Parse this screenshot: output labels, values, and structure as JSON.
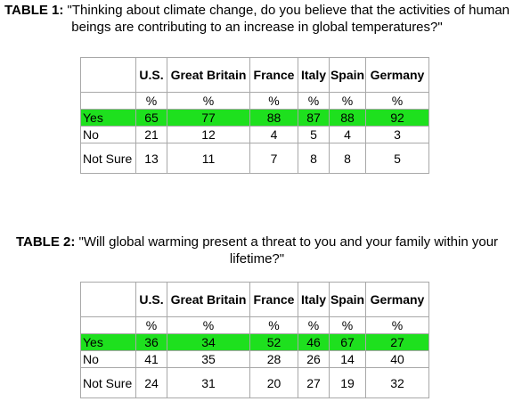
{
  "table1": {
    "caption_label": "TABLE 1:",
    "caption_text": " \"Thinking about climate change, do you believe that the activities of human beings are contributing to an increase in global temperatures?\"",
    "headers": [
      "U.S.",
      "Great Britain",
      "France",
      "Italy",
      "Spain",
      "Germany"
    ],
    "unit_row": [
      "%",
      "%",
      "%",
      "%",
      "%",
      "%"
    ],
    "rows": [
      {
        "label": "Yes",
        "values": [
          "65",
          "77",
          "88",
          "87",
          "88",
          "92"
        ]
      },
      {
        "label": "No",
        "values": [
          "21",
          "12",
          "4",
          "5",
          "4",
          "3"
        ]
      },
      {
        "label": "Not Sure",
        "values": [
          "13",
          "11",
          "7",
          "8",
          "8",
          "5"
        ]
      }
    ]
  },
  "table2": {
    "caption_label": "TABLE 2:",
    "caption_text": " \"Will global warming present a threat to you and your family within your lifetime?\"",
    "headers": [
      "U.S.",
      "Great Britain",
      "France",
      "Italy",
      "Spain",
      "Germany"
    ],
    "unit_row": [
      "%",
      "%",
      "%",
      "%",
      "%",
      "%"
    ],
    "rows": [
      {
        "label": "Yes",
        "values": [
          "36",
          "34",
          "52",
          "46",
          "67",
          "27"
        ]
      },
      {
        "label": "No",
        "values": [
          "41",
          "35",
          "28",
          "26",
          "14",
          "40"
        ]
      },
      {
        "label": "Not Sure",
        "values": [
          "24",
          "31",
          "20",
          "27",
          "19",
          "32"
        ]
      }
    ]
  },
  "colors": {
    "highlight": "#1ee01e",
    "border": "#a8a8a8"
  }
}
